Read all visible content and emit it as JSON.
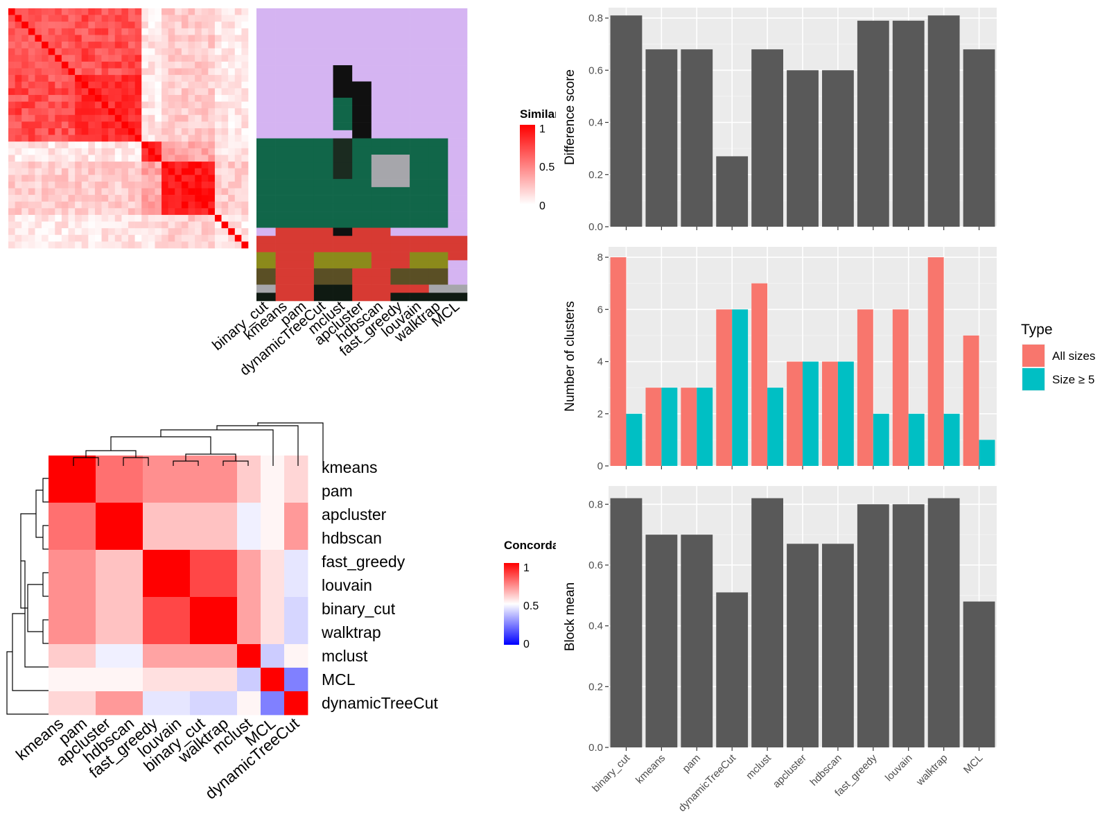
{
  "colors": {
    "similarity_high": "#ff0000",
    "similarity_low": "#ffffff",
    "concordance_high": "#ff0000",
    "concordance_mid": "#ffffff",
    "concordance_low": "#0000ff",
    "bar_fill": "#595959",
    "panel_bg": "#ebebeb",
    "grid": "#ffffff",
    "all_sizes": "#f8766d",
    "size_ge5": "#00bfc4",
    "class_purple": "#d5b4f2",
    "class_green": "#116649",
    "class_red": "#d73a33",
    "class_olive": "#8b8a1b",
    "class_darkolive": "#5a4f25",
    "class_black": "#101010",
    "class_gray": "#a6a6ab",
    "class_darkgreen": "#1b2b20"
  },
  "similarity_legend": {
    "title": "Similarity",
    "ticks": [
      "1",
      "0.5",
      "0"
    ]
  },
  "concordance_legend": {
    "title": "Concordance",
    "ticks": [
      "1",
      "0.5",
      "0"
    ]
  },
  "membership_columns": [
    "binary_cut",
    "kmeans",
    "pam",
    "dynamicTreeCut",
    "mclust",
    "apcluster",
    "hdbscan",
    "fast_greedy",
    "louvain",
    "walktrap",
    "MCL"
  ],
  "concordance_methods": [
    "kmeans",
    "pam",
    "apcluster",
    "hdbscan",
    "fast_greedy",
    "louvain",
    "binary_cut",
    "walktrap",
    "mclust",
    "MCL",
    "dynamicTreeCut"
  ],
  "bar_methods": [
    "binary_cut",
    "kmeans",
    "pam",
    "dynamicTreeCut",
    "mclust",
    "apcluster",
    "hdbscan",
    "fast_greedy",
    "louvain",
    "walktrap",
    "MCL"
  ],
  "chart_data": [
    {
      "type": "heatmap",
      "title": "",
      "legend_title": "Similarity",
      "scale": {
        "min": 0,
        "max": 1
      },
      "blocks": [
        {
          "rows": [
            0,
            10
          ],
          "value": 0.75
        },
        {
          "rows": [
            10,
            20
          ],
          "value": 0.92
        },
        {
          "rows": [
            20,
            23
          ],
          "value": 0.95
        },
        {
          "rows": [
            23,
            31
          ],
          "value": 1.0
        }
      ],
      "size": 36
    },
    {
      "type": "heatmap",
      "title": "",
      "columns": [
        "binary_cut",
        "kmeans",
        "pam",
        "dynamicTreeCut",
        "mclust",
        "apcluster",
        "hdbscan",
        "fast_greedy",
        "louvain",
        "walktrap",
        "MCL"
      ],
      "rows": 36,
      "classes": [
        "PPPPPPPPPPP",
        "PPPPPPPPPPP",
        "PPPPPPPPPPP",
        "PPPPPPPPPPP",
        "PPPPPPPPPPP",
        "PPPPPPPPPPP",
        "PPPPPPPPPPP",
        "PPPPBPPPPPP",
        "PPPPBPPPPPP",
        "PPPPBBPPPPP",
        "PPPPBBPPPPP",
        "PPPPGBPPPPP",
        "PPPPGBPPPPP",
        "PPPPGBPPPPP",
        "PPPPGBPPPPP",
        "PPPPPBPPPPP",
        "GGGGDGGGGGP",
        "GGGGDGGGGGP",
        "GGGGDGYYGGP",
        "GGGGDGYYGGP",
        "GGGGDGYYGGP",
        "GGGGGGYYGGP",
        "GGGGGGGGGGP",
        "GGGGGGGGGGP",
        "GGGGGGGGGGP",
        "GGGGGGGGGGP",
        "GGGGGGGGGGP",
        "PRRRBRRPPPP",
        "RRRRRRRRRRR",
        "RRRRRRRRRRR",
        "ORROOORROOR",
        "ORROOORROOP",
        "LRRLLRRLLLP",
        "LRRLLRRLLLP",
        "YRRKKRRQQYY",
        "KRRKKRRKKKK"
      ],
      "class_colors": {
        "P": "#d5b4f2",
        "G": "#116649",
        "R": "#d73a33",
        "O": "#8b8a1b",
        "L": "#5a4f25",
        "B": "#101010",
        "Y": "#a6a6ab",
        "D": "#1b2b20",
        "K": "#0f1a12",
        "Q": "#d73a33"
      }
    },
    {
      "type": "heatmap",
      "title": "",
      "legend_title": "Concordance",
      "methods": [
        "kmeans",
        "pam",
        "apcluster",
        "hdbscan",
        "fast_greedy",
        "louvain",
        "binary_cut",
        "walktrap",
        "mclust",
        "MCL",
        "dynamicTreeCut"
      ],
      "values": [
        [
          1.0,
          1.0,
          0.78,
          0.78,
          0.72,
          0.72,
          0.72,
          0.72,
          0.6,
          0.52,
          0.58
        ],
        [
          1.0,
          1.0,
          0.78,
          0.78,
          0.72,
          0.72,
          0.72,
          0.72,
          0.6,
          0.52,
          0.58
        ],
        [
          0.78,
          0.78,
          1.0,
          1.0,
          0.62,
          0.62,
          0.62,
          0.62,
          0.47,
          0.52,
          0.7
        ],
        [
          0.78,
          0.78,
          1.0,
          1.0,
          0.62,
          0.62,
          0.62,
          0.62,
          0.47,
          0.52,
          0.7
        ],
        [
          0.72,
          0.72,
          0.62,
          0.62,
          1.0,
          1.0,
          0.86,
          0.86,
          0.68,
          0.56,
          0.45
        ],
        [
          0.72,
          0.72,
          0.62,
          0.62,
          1.0,
          1.0,
          0.86,
          0.86,
          0.68,
          0.56,
          0.45
        ],
        [
          0.72,
          0.72,
          0.62,
          0.62,
          0.86,
          0.86,
          1.0,
          1.0,
          0.68,
          0.56,
          0.42
        ],
        [
          0.72,
          0.72,
          0.62,
          0.62,
          0.86,
          0.86,
          1.0,
          1.0,
          0.68,
          0.56,
          0.42
        ],
        [
          0.6,
          0.6,
          0.47,
          0.47,
          0.68,
          0.68,
          0.68,
          0.68,
          1.0,
          0.4,
          0.52
        ],
        [
          0.52,
          0.52,
          0.52,
          0.52,
          0.56,
          0.56,
          0.56,
          0.56,
          0.4,
          1.0,
          0.25
        ],
        [
          0.58,
          0.58,
          0.7,
          0.7,
          0.45,
          0.45,
          0.42,
          0.42,
          0.52,
          0.25,
          1.0
        ]
      ],
      "scale": {
        "min": 0,
        "mid": 0.5,
        "max": 1
      }
    },
    {
      "type": "bar",
      "title": "",
      "xlabel": "",
      "ylabel": "Difference score",
      "categories": [
        "binary_cut",
        "kmeans",
        "pam",
        "dynamicTreeCut",
        "mclust",
        "apcluster",
        "hdbscan",
        "fast_greedy",
        "louvain",
        "walktrap",
        "MCL"
      ],
      "values": [
        0.81,
        0.68,
        0.68,
        0.27,
        0.68,
        0.6,
        0.6,
        0.79,
        0.79,
        0.81,
        0.68
      ],
      "ylim": [
        0,
        0.84
      ],
      "yticks": [
        0.0,
        0.2,
        0.4,
        0.6,
        0.8
      ],
      "ytick_labels": [
        "0.0",
        "0.2",
        "0.4",
        "0.6",
        "0.8"
      ],
      "grid": true
    },
    {
      "type": "bar",
      "title": "",
      "xlabel": "",
      "ylabel": "Number of clusters",
      "categories": [
        "binary_cut",
        "kmeans",
        "pam",
        "dynamicTreeCut",
        "mclust",
        "apcluster",
        "hdbscan",
        "fast_greedy",
        "louvain",
        "walktrap",
        "MCL"
      ],
      "series": [
        {
          "name": "All sizes",
          "values": [
            8,
            3,
            3,
            6,
            7,
            4,
            4,
            6,
            6,
            8,
            5
          ]
        },
        {
          "name": "Size ≥ 5",
          "values": [
            2,
            3,
            3,
            6,
            3,
            4,
            4,
            2,
            2,
            2,
            1
          ]
        }
      ],
      "ylim": [
        0,
        8.4
      ],
      "yticks": [
        0,
        2,
        4,
        6,
        8
      ],
      "ytick_labels": [
        "0",
        "2",
        "4",
        "6",
        "8"
      ],
      "legend_title": "Type",
      "legend_position": "right",
      "grid": true
    },
    {
      "type": "bar",
      "title": "",
      "xlabel": "",
      "ylabel": "Block mean",
      "categories": [
        "binary_cut",
        "kmeans",
        "pam",
        "dynamicTreeCut",
        "mclust",
        "apcluster",
        "hdbscan",
        "fast_greedy",
        "louvain",
        "walktrap",
        "MCL"
      ],
      "values": [
        0.82,
        0.7,
        0.7,
        0.51,
        0.82,
        0.67,
        0.67,
        0.8,
        0.8,
        0.82,
        0.48
      ],
      "ylim": [
        0,
        0.86
      ],
      "yticks": [
        0.0,
        0.2,
        0.4,
        0.6,
        0.8
      ],
      "ytick_labels": [
        "0.0",
        "0.2",
        "0.4",
        "0.6",
        "0.8"
      ],
      "grid": true
    }
  ]
}
